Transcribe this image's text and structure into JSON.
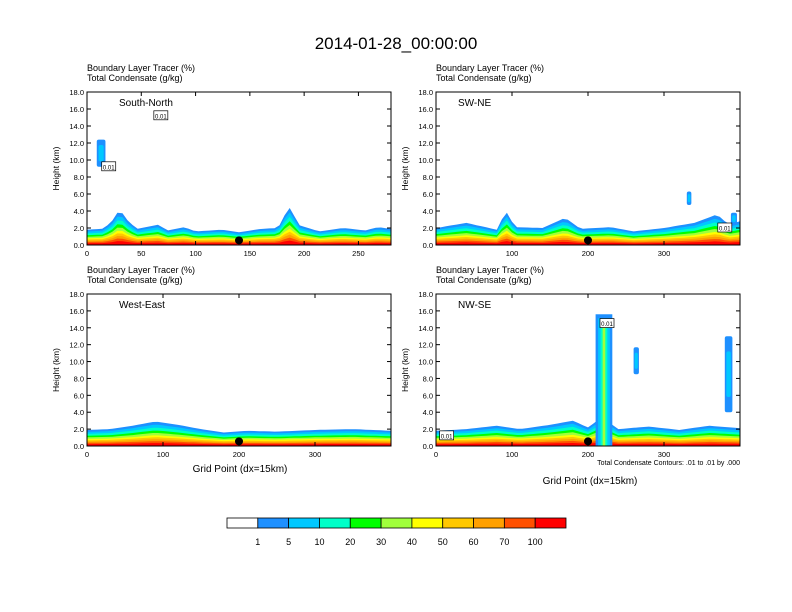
{
  "title": "2014-01-28_00:00:00",
  "chart_data": [
    {
      "type": "heatmap",
      "panel_label": "South-North",
      "subtitle_lines": [
        "Boundary Layer Tracer   (%)",
        "Total Condensate   (g/kg)"
      ],
      "ylabel": "Height (km)",
      "ylim": [
        0,
        18
      ],
      "xlim": [
        0,
        280
      ],
      "yticks": [
        "0.0",
        "2.0",
        "4.0",
        "6.0",
        "8.0",
        "10.0",
        "12.0",
        "14.0",
        "16.0",
        "18.0"
      ],
      "xticks": [
        {
          "v": 0,
          "label": "0"
        },
        {
          "v": 50,
          "label": "50"
        },
        {
          "v": 100,
          "label": "100"
        },
        {
          "v": 150,
          "label": "150"
        },
        {
          "v": 200,
          "label": "200"
        },
        {
          "v": 250,
          "label": "250"
        }
      ],
      "marker_x": 140,
      "contour_labels": [
        {
          "x": 68,
          "y": 15.2,
          "text": "0.01"
        },
        {
          "x": 20,
          "y": 9.2,
          "text": "0.01"
        }
      ],
      "tracer_top_km": [
        [
          0,
          1.8
        ],
        [
          14,
          1.9
        ],
        [
          22,
          2.6
        ],
        [
          30,
          4.2
        ],
        [
          38,
          2.8
        ],
        [
          46,
          1.9
        ],
        [
          66,
          2.4
        ],
        [
          74,
          1.7
        ],
        [
          90,
          2.1
        ],
        [
          100,
          1.6
        ],
        [
          124,
          1.8
        ],
        [
          140,
          1.5
        ],
        [
          160,
          1.9
        ],
        [
          176,
          2.0
        ],
        [
          186,
          4.5
        ],
        [
          196,
          2.3
        ],
        [
          214,
          1.6
        ],
        [
          236,
          2.0
        ],
        [
          256,
          1.7
        ],
        [
          268,
          2.1
        ],
        [
          280,
          1.9
        ]
      ],
      "plumes": [
        {
          "x": 9,
          "y": 9.2,
          "w": 8,
          "h": 3.2
        }
      ]
    },
    {
      "type": "heatmap",
      "panel_label": "SW-NE",
      "subtitle_lines": [
        "Boundary Layer Tracer   (%)",
        "Total Condensate   (g/kg)"
      ],
      "ylabel": "Height (km)",
      "ylim": [
        0,
        18
      ],
      "xlim": [
        0,
        400
      ],
      "yticks": [
        "0.0",
        "2.0",
        "4.0",
        "6.0",
        "8.0",
        "10.0",
        "12.0",
        "14.0",
        "16.0",
        "18.0"
      ],
      "xticks": [
        {
          "v": 100,
          "label": "100"
        },
        {
          "v": 200,
          "label": "200"
        },
        {
          "v": 300,
          "label": "300"
        }
      ],
      "marker_x": 200,
      "contour_labels": [
        {
          "x": 380,
          "y": 2.0,
          "text": "0.01"
        }
      ],
      "tracer_top_km": [
        [
          0,
          2.0
        ],
        [
          40,
          2.6
        ],
        [
          80,
          1.8
        ],
        [
          92,
          4.0
        ],
        [
          104,
          2.1
        ],
        [
          140,
          2.0
        ],
        [
          170,
          3.2
        ],
        [
          190,
          1.9
        ],
        [
          230,
          2.1
        ],
        [
          260,
          1.6
        ],
        [
          300,
          2.0
        ],
        [
          340,
          2.6
        ],
        [
          370,
          3.6
        ],
        [
          385,
          2.4
        ],
        [
          400,
          2.8
        ]
      ],
      "plumes": [
        {
          "x": 330,
          "y": 4.7,
          "w": 6,
          "h": 1.6
        },
        {
          "x": 388,
          "y": 2.4,
          "w": 8,
          "h": 1.4
        }
      ]
    },
    {
      "type": "heatmap",
      "panel_label": "West-East",
      "subtitle_lines": [
        "Boundary Layer Tracer   (%)",
        "Total Condensate   (g/kg)"
      ],
      "ylabel": "Height (km)",
      "ylim": [
        0,
        18
      ],
      "xlim": [
        0,
        400
      ],
      "yticks": [
        "0.0",
        "2.0",
        "4.0",
        "6.0",
        "8.0",
        "10.0",
        "12.0",
        "14.0",
        "16.0",
        "18.0"
      ],
      "xticks": [
        {
          "v": 0,
          "label": "0"
        },
        {
          "v": 100,
          "label": "100"
        },
        {
          "v": 200,
          "label": "200"
        },
        {
          "v": 300,
          "label": "300"
        }
      ],
      "marker_x": 200,
      "contour_labels": [],
      "tracer_top_km": [
        [
          0,
          1.9
        ],
        [
          30,
          2.0
        ],
        [
          60,
          2.4
        ],
        [
          90,
          2.9
        ],
        [
          120,
          2.5
        ],
        [
          150,
          2.0
        ],
        [
          180,
          1.6
        ],
        [
          210,
          1.8
        ],
        [
          250,
          1.7
        ],
        [
          300,
          1.9
        ],
        [
          350,
          2.0
        ],
        [
          400,
          1.8
        ]
      ],
      "plumes": []
    },
    {
      "type": "heatmap",
      "panel_label": "NW-SE",
      "subtitle_lines": [
        "Boundary Layer Tracer   (%)",
        "Total Condensate   (g/kg)"
      ],
      "ylabel": "Height (km)",
      "ylim": [
        0,
        18
      ],
      "xlim": [
        0,
        400
      ],
      "yticks": [
        "0.0",
        "2.0",
        "4.0",
        "6.0",
        "8.0",
        "10.0",
        "12.0",
        "14.0",
        "16.0",
        "18.0"
      ],
      "xticks": [
        {
          "v": 0,
          "label": "0"
        },
        {
          "v": 100,
          "label": "100"
        },
        {
          "v": 200,
          "label": "200"
        },
        {
          "v": 300,
          "label": "300"
        }
      ],
      "marker_x": 200,
      "contour_labels": [
        {
          "x": 225,
          "y": 14.5,
          "text": "0.01"
        },
        {
          "x": 14,
          "y": 1.2,
          "text": "0.01"
        }
      ],
      "tracer_top_km": [
        [
          0,
          1.8
        ],
        [
          40,
          2.0
        ],
        [
          80,
          2.4
        ],
        [
          110,
          2.0
        ],
        [
          150,
          2.5
        ],
        [
          180,
          3.0
        ],
        [
          200,
          2.2
        ],
        [
          218,
          3.4
        ],
        [
          240,
          2.0
        ],
        [
          280,
          2.3
        ],
        [
          320,
          1.9
        ],
        [
          360,
          2.4
        ],
        [
          400,
          2.1
        ]
      ],
      "plumes": [
        {
          "x": 260,
          "y": 8.5,
          "w": 7,
          "h": 3.2
        },
        {
          "x": 380,
          "y": 4.0,
          "w": 10,
          "h": 9.0
        }
      ],
      "column": {
        "x0": 210,
        "x1": 232,
        "top_km": 15.6
      },
      "footnote": "Total Condensate Contours: .01 to .01 by .000"
    }
  ],
  "xlabel": "Grid Point (dx=15km)",
  "colorbar": {
    "labels": [
      "1",
      "5",
      "10",
      "20",
      "30",
      "40",
      "50",
      "60",
      "70",
      "100"
    ],
    "colors": [
      "#ffffff",
      "#1e90ff",
      "#00c8ff",
      "#00ffc8",
      "#00ff00",
      "#a0ff3c",
      "#ffff00",
      "#ffc800",
      "#ffa000",
      "#ff5000",
      "#ff0000"
    ]
  }
}
